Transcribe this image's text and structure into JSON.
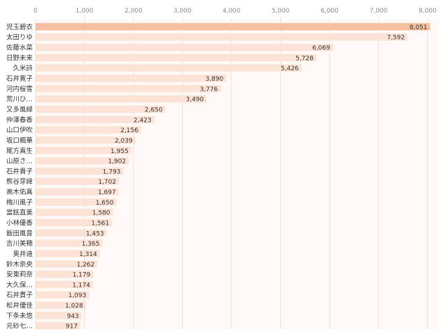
{
  "chart_data": {
    "type": "bar",
    "orientation": "horizontal",
    "categories": [
      "児玉碧衣",
      "太田りゆ",
      "佐藤水菜",
      "日野未来",
      "久米詩",
      "石井寛子",
      "河内桜雪",
      "荒川ひ…",
      "又多風緑",
      "仲澤春香",
      "山口伊吹",
      "坂口楓華",
      "尾方真生",
      "山原さ…",
      "石井貴子",
      "熊谷芽緯",
      "高木佑真",
      "梅川風子",
      "當銘直美",
      "小林優香",
      "飯田風音",
      "吉川美穂",
      "奥井迪",
      "鈴木奈央",
      "安東莉奈",
      "大久保…",
      "石井貴子",
      "松井優佳",
      "下条未悠",
      "元砂七…"
    ],
    "values": [
      8051,
      7592,
      6069,
      5728,
      5426,
      3890,
      3776,
      3490,
      2650,
      2423,
      2156,
      2039,
      1955,
      1902,
      1793,
      1702,
      1697,
      1650,
      1580,
      1561,
      1453,
      1365,
      1314,
      1262,
      1179,
      1174,
      1093,
      1028,
      943,
      917
    ],
    "data_labels": [
      "8,051",
      "7,592",
      "6,069",
      "5,728",
      "5,426",
      "3,890",
      "3,776",
      "3,490",
      "2,650",
      "2,423",
      "2,156",
      "2,039",
      "1,955",
      "1,902",
      "1,793",
      "1,702",
      "1,697",
      "1,650",
      "1,580",
      "1,561",
      "1,453",
      "1,365",
      "1,314",
      "1,262",
      "1,179",
      "1,174",
      "1,093",
      "1,028",
      "943",
      "917"
    ],
    "x_ticks": [
      0,
      1000,
      2000,
      3000,
      4000,
      5000,
      6000,
      7000,
      8000
    ],
    "x_tick_labels": [
      "0",
      "1,000",
      "2,000",
      "3,000",
      "4,000",
      "5,000",
      "6,000",
      "7,000",
      "8,000"
    ],
    "xlim": [
      0,
      8000
    ],
    "title": "",
    "xlabel": "",
    "ylabel": "",
    "grid": true,
    "highlight_index": 0,
    "colors": {
      "bar": "#fde3d6",
      "bar_highlight": "#f5c09f",
      "plot_bg": "#fffaf8",
      "grid": "#e8e2df"
    }
  }
}
